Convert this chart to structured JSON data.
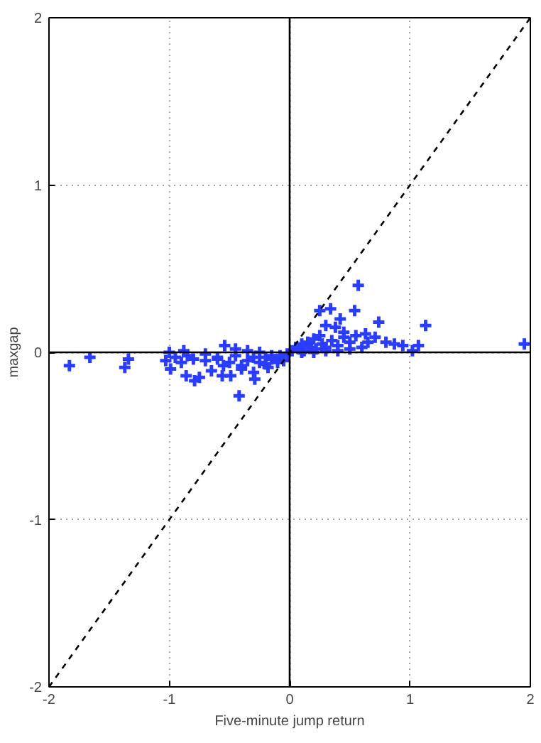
{
  "chart_data": {
    "type": "scatter",
    "xlabel": "Five-minute jump return",
    "ylabel": "maxgap",
    "xlim": [
      -2,
      2
    ],
    "ylim": [
      -2,
      2
    ],
    "xticks": [
      -2,
      -1,
      0,
      1,
      2
    ],
    "yticks": [
      -2,
      -1,
      0,
      1,
      2
    ],
    "grid": true,
    "marker": "cross",
    "series": [
      {
        "color": "#2a3cff",
        "x": [
          -1.83,
          -1.66,
          -1.37,
          -1.34,
          -1.03,
          -0.99,
          -1.0,
          -0.95,
          -0.9,
          -0.88,
          -0.86,
          -0.8,
          -0.79,
          -0.75,
          -0.7,
          -0.65,
          -0.6,
          -0.56,
          -0.54,
          -0.5,
          -0.49,
          -0.45,
          -0.42,
          -0.4,
          -0.35,
          -0.3,
          -0.29,
          -0.25,
          -0.2,
          -0.18,
          -0.15,
          -0.1,
          -0.08,
          -0.05,
          -0.02,
          -0.85,
          -0.7,
          -0.6,
          -0.45,
          -0.35,
          -0.25,
          -0.15,
          -0.4,
          -0.3,
          -0.2,
          -0.55,
          0.02,
          0.05,
          0.08,
          0.1,
          0.12,
          0.15,
          0.18,
          0.2,
          0.22,
          0.25,
          0.27,
          0.3,
          0.3,
          0.34,
          0.35,
          0.38,
          0.4,
          0.42,
          0.45,
          0.5,
          0.54,
          0.55,
          0.57,
          0.6,
          0.63,
          0.65,
          0.71,
          0.74,
          0.8,
          0.87,
          0.94,
          1.02,
          1.07,
          1.13,
          1.95,
          0.1,
          0.2,
          0.3,
          0.4,
          0.5,
          0.25,
          0.45
        ],
        "values": [
          -0.08,
          -0.03,
          -0.09,
          -0.04,
          -0.05,
          -0.1,
          0.0,
          -0.03,
          -0.06,
          0.01,
          -0.14,
          -0.04,
          -0.17,
          -0.15,
          -0.05,
          -0.11,
          -0.03,
          -0.14,
          0.04,
          -0.06,
          -0.14,
          -0.02,
          -0.26,
          -0.08,
          -0.05,
          -0.03,
          -0.16,
          -0.06,
          -0.03,
          -0.09,
          -0.04,
          -0.06,
          -0.02,
          -0.05,
          -0.01,
          -0.02,
          -0.01,
          -0.04,
          0.02,
          0.01,
          0.0,
          -0.02,
          -0.1,
          -0.12,
          -0.07,
          -0.08,
          0.01,
          0.03,
          0.02,
          0.05,
          0.01,
          0.06,
          0.03,
          0.08,
          0.02,
          0.25,
          0.05,
          0.16,
          0.01,
          0.26,
          0.07,
          0.15,
          0.04,
          0.2,
          0.09,
          0.06,
          0.25,
          0.1,
          0.4,
          0.03,
          0.11,
          0.06,
          0.09,
          0.18,
          0.06,
          0.05,
          0.04,
          0.01,
          0.04,
          0.16,
          0.05,
          0.0,
          0.0,
          0.03,
          0.01,
          0.02,
          0.1,
          0.12
        ]
      },
      {
        "type": "line",
        "color": "#000000",
        "line_style": "dashed",
        "marker": "none",
        "x": [
          -2,
          2
        ],
        "values": [
          -2,
          2
        ]
      },
      {
        "type": "line",
        "color": "#000000",
        "line_style": "solid",
        "marker": "none",
        "x": [
          -2,
          2
        ],
        "values": [
          0,
          0
        ]
      },
      {
        "type": "line",
        "color": "#000000",
        "line_style": "solid",
        "marker": "none",
        "x": [
          0,
          0
        ],
        "values": [
          -2,
          2
        ]
      }
    ]
  }
}
